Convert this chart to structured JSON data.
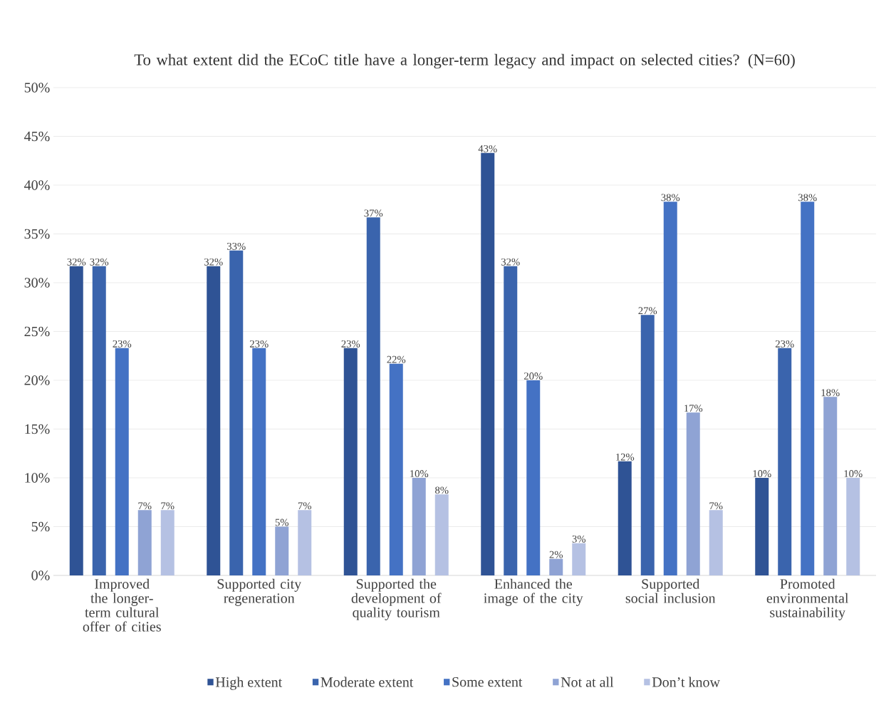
{
  "chart_data": {
    "type": "bar",
    "title": "To what extent did the ECoC title have a longer-term legacy and impact on selected cities? (N=60)",
    "categories": [
      "Improved the longer-term cultural offer of cities",
      "Supported city regeneration",
      "Supported the development of quality tourism",
      "Enhanced the image of the city",
      "Supported social inclusion",
      "Promoted environmental sustainability"
    ],
    "series": [
      {
        "name": "High extent",
        "color": "#2f5395",
        "values": [
          31.7,
          31.7,
          23.3,
          43.3,
          11.7,
          10
        ],
        "value_labels": [
          "32%",
          "32%",
          "23%",
          "43%",
          "12%",
          "10%"
        ]
      },
      {
        "name": "Moderate extent",
        "color": "#3a64ad",
        "values": [
          31.7,
          33.3,
          36.7,
          31.7,
          26.7,
          23.3
        ],
        "value_labels": [
          "32%",
          "33%",
          "37%",
          "32%",
          "27%",
          "23%"
        ]
      },
      {
        "name": "Some extent",
        "color": "#4472c4",
        "values": [
          23.3,
          23.3,
          21.7,
          20,
          38.3,
          38.3
        ],
        "value_labels": [
          "23%",
          "23%",
          "22%",
          "20%",
          "38%",
          "38%"
        ]
      },
      {
        "name": "Not at all",
        "color": "#8fa3d4",
        "values": [
          6.7,
          5,
          10,
          1.7,
          16.7,
          18.3
        ],
        "value_labels": [
          "7%",
          "5%",
          "10%",
          "2%",
          "17%",
          "18%"
        ]
      },
      {
        "name": "Don’t know",
        "color": "#b5c1e3",
        "values": [
          6.7,
          6.7,
          8.3,
          3.3,
          6.7,
          10
        ],
        "value_labels": [
          "7%",
          "7%",
          "8%",
          "3%",
          "7%",
          "10%"
        ]
      }
    ],
    "ylim": [
      0,
      50
    ],
    "yticks": [
      {
        "value": 0,
        "label": "0%"
      },
      {
        "value": 5,
        "label": "5%"
      },
      {
        "value": 10,
        "label": "10%"
      },
      {
        "value": 15,
        "label": "15%"
      },
      {
        "value": 20,
        "label": "20%"
      },
      {
        "value": 25,
        "label": "25%"
      },
      {
        "value": 30,
        "label": "30%"
      },
      {
        "value": 35,
        "label": "35%"
      },
      {
        "value": 40,
        "label": "40%"
      },
      {
        "value": 45,
        "label": "45%"
      },
      {
        "value": 50,
        "label": "50%"
      }
    ],
    "grid": "y",
    "legend": "bottom"
  }
}
